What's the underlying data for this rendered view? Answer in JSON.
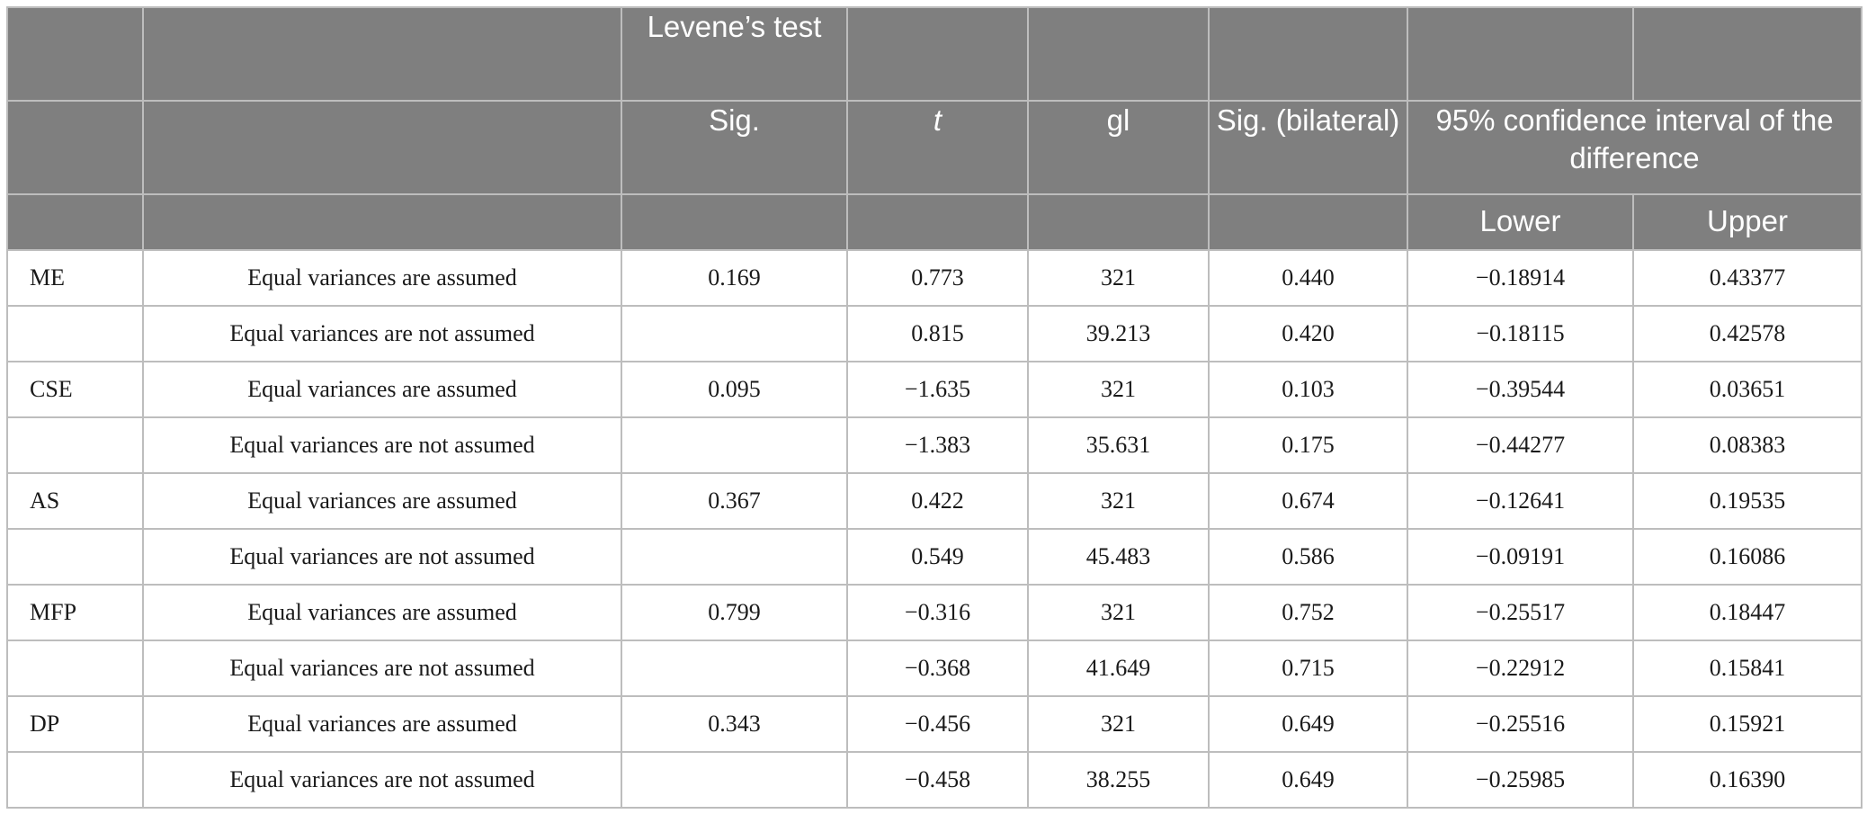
{
  "header": {
    "levenes_test": "Levene’s test",
    "sig": "Sig.",
    "t": "t",
    "gl": "gl",
    "sig_bilateral": "Sig. (bilateral)",
    "ci": "95% confidence interval of the difference",
    "lower": "Lower",
    "upper": "Upper"
  },
  "rows": [
    {
      "variable": "ME",
      "assumption": "Equal variances are assumed",
      "levene_sig": "0.169",
      "t": "0.773",
      "gl": "321",
      "sig_bilateral": "0.440",
      "lower": "−0.18914",
      "upper": "0.43377"
    },
    {
      "variable": "",
      "assumption": "Equal variances are not assumed",
      "levene_sig": "",
      "t": "0.815",
      "gl": "39.213",
      "sig_bilateral": "0.420",
      "lower": "−0.18115",
      "upper": "0.42578"
    },
    {
      "variable": "CSE",
      "assumption": "Equal variances are assumed",
      "levene_sig": "0.095",
      "t": "−1.635",
      "gl": "321",
      "sig_bilateral": "0.103",
      "lower": "−0.39544",
      "upper": "0.03651"
    },
    {
      "variable": "",
      "assumption": "Equal variances are not assumed",
      "levene_sig": "",
      "t": "−1.383",
      "gl": "35.631",
      "sig_bilateral": "0.175",
      "lower": "−0.44277",
      "upper": "0.08383"
    },
    {
      "variable": "AS",
      "assumption": "Equal variances are assumed",
      "levene_sig": "0.367",
      "t": "0.422",
      "gl": "321",
      "sig_bilateral": "0.674",
      "lower": "−0.12641",
      "upper": "0.19535"
    },
    {
      "variable": "",
      "assumption": "Equal variances are not assumed",
      "levene_sig": "",
      "t": "0.549",
      "gl": "45.483",
      "sig_bilateral": "0.586",
      "lower": "−0.09191",
      "upper": "0.16086"
    },
    {
      "variable": "MFP",
      "assumption": "Equal variances are assumed",
      "levene_sig": "0.799",
      "t": "−0.316",
      "gl": "321",
      "sig_bilateral": "0.752",
      "lower": "−0.25517",
      "upper": "0.18447"
    },
    {
      "variable": "",
      "assumption": "Equal variances are not assumed",
      "levene_sig": "",
      "t": "−0.368",
      "gl": "41.649",
      "sig_bilateral": "0.715",
      "lower": "−0.22912",
      "upper": "0.15841"
    },
    {
      "variable": "DP",
      "assumption": "Equal variances are assumed",
      "levene_sig": "0.343",
      "t": "−0.456",
      "gl": "321",
      "sig_bilateral": "0.649",
      "lower": "−0.25516",
      "upper": "0.15921"
    },
    {
      "variable": "",
      "assumption": "Equal variances are not assumed",
      "levene_sig": "",
      "t": "−0.458",
      "gl": "38.255",
      "sig_bilateral": "0.649",
      "lower": "−0.25985",
      "upper": "0.16390"
    }
  ]
}
